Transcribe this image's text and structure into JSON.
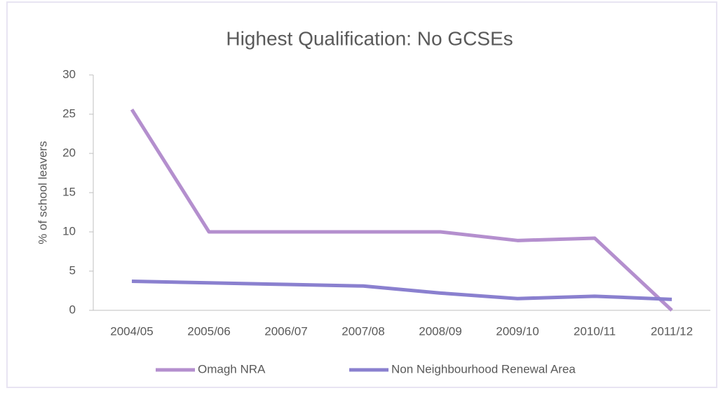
{
  "chart_data": {
    "type": "line",
    "title": "Highest Qualification: No GCSEs",
    "y_label": "% of school leavers",
    "categories": [
      "2004/05",
      "2005/06",
      "2006/07",
      "2007/08",
      "2008/09",
      "2009/10",
      "2010/11",
      "2011/12"
    ],
    "series": [
      {
        "name": "Omagh NRA",
        "color": "#b48fce",
        "values": [
          25.6,
          10,
          10,
          10,
          10,
          8.9,
          9.2,
          0
        ]
      },
      {
        "name": "Non Neighbourhood Renewal Area",
        "color": "#8a80cf",
        "values": [
          3.7,
          3.5,
          3.3,
          3.1,
          2.2,
          1.5,
          1.8,
          1.4
        ]
      }
    ],
    "ylim": [
      0,
      30
    ],
    "yticks": [
      0,
      5,
      10,
      15,
      20,
      25,
      30
    ],
    "grid": false,
    "legend": "bottom"
  }
}
